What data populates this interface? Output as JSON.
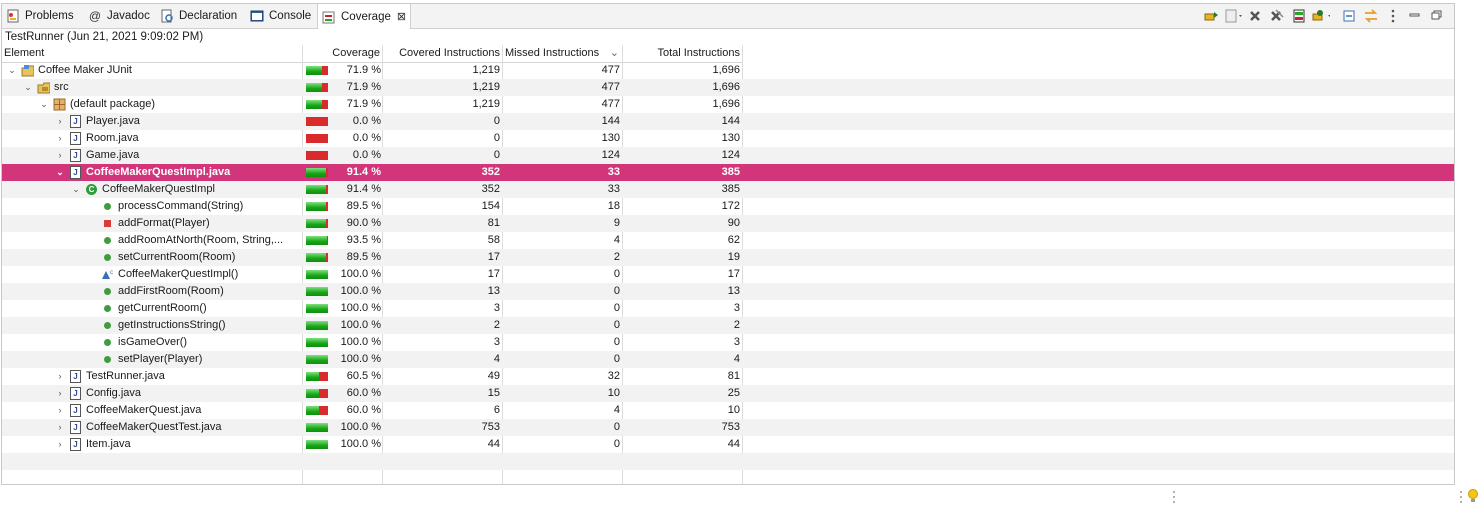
{
  "tabs": [
    {
      "label": "Problems",
      "icon": "problems-icon",
      "active": false
    },
    {
      "label": "Javadoc",
      "icon": "at-icon",
      "active": false
    },
    {
      "label": "Declaration",
      "icon": "declaration-icon",
      "active": false
    },
    {
      "label": "Console",
      "icon": "console-icon",
      "active": false
    },
    {
      "label": "Coverage",
      "icon": "coverage-icon",
      "active": true
    }
  ],
  "session": {
    "label": "TestRunner (Jun 21, 2021 9:09:02 PM)"
  },
  "columns": {
    "element": "Element",
    "coverage": "Coverage",
    "covered": "Covered Instructions",
    "missed": "Missed Instructions",
    "total": "Total Instructions",
    "sort_indicator": "⌄"
  },
  "toolbar_icons": [
    "relaunch-icon",
    "dump-icon",
    "remove-session-icon",
    "remove-all-sessions-icon",
    "merge-sessions-icon",
    "select-session-icon",
    "collapse-all-icon",
    "link-with-selection-icon",
    "view-menu-icon",
    "minimize-icon",
    "maximize-icon"
  ],
  "colors": {
    "selection": "#d3357a",
    "covered": "#17a617",
    "missed": "#d92b2b"
  },
  "rows": [
    {
      "name": "Coffee Maker JUnit",
      "depth": 0,
      "icon": "project",
      "expand": "open",
      "coverage_ratio": 0.719,
      "coverage": "71.9 %",
      "covered": "1,219",
      "missed": "477",
      "total": "1,696"
    },
    {
      "name": "src",
      "depth": 1,
      "icon": "source-folder",
      "expand": "open",
      "coverage_ratio": 0.719,
      "coverage": "71.9 %",
      "covered": "1,219",
      "missed": "477",
      "total": "1,696"
    },
    {
      "name": "(default package)",
      "depth": 2,
      "icon": "package",
      "expand": "open",
      "coverage_ratio": 0.719,
      "coverage": "71.9 %",
      "covered": "1,219",
      "missed": "477",
      "total": "1,696"
    },
    {
      "name": "Player.java",
      "depth": 3,
      "icon": "java-file",
      "expand": "closed",
      "coverage_ratio": 0.0,
      "coverage": "0.0 %",
      "covered": "0",
      "missed": "144",
      "total": "144"
    },
    {
      "name": "Room.java",
      "depth": 3,
      "icon": "java-file",
      "expand": "closed",
      "coverage_ratio": 0.0,
      "coverage": "0.0 %",
      "covered": "0",
      "missed": "130",
      "total": "130"
    },
    {
      "name": "Game.java",
      "depth": 3,
      "icon": "java-file",
      "expand": "closed",
      "coverage_ratio": 0.0,
      "coverage": "0.0 %",
      "covered": "0",
      "missed": "124",
      "total": "124"
    },
    {
      "name": "CoffeeMakerQuestImpl.java",
      "depth": 3,
      "icon": "java-file",
      "expand": "open",
      "coverage_ratio": 0.914,
      "coverage": "91.4 %",
      "covered": "352",
      "missed": "33",
      "total": "385",
      "selected": true
    },
    {
      "name": "CoffeeMakerQuestImpl",
      "depth": 4,
      "icon": "class",
      "expand": "open",
      "coverage_ratio": 0.914,
      "coverage": "91.4 %",
      "covered": "352",
      "missed": "33",
      "total": "385"
    },
    {
      "name": "processCommand(String)",
      "depth": 5,
      "icon": "public-method",
      "expand": "none",
      "coverage_ratio": 0.895,
      "coverage": "89.5 %",
      "covered": "154",
      "missed": "18",
      "total": "172"
    },
    {
      "name": "addFormat(Player)",
      "depth": 5,
      "icon": "private-method",
      "expand": "none",
      "coverage_ratio": 0.9,
      "coverage": "90.0 %",
      "covered": "81",
      "missed": "9",
      "total": "90"
    },
    {
      "name": "addRoomAtNorth(Room, String,...",
      "depth": 5,
      "icon": "public-method",
      "expand": "none",
      "coverage_ratio": 0.935,
      "coverage": "93.5 %",
      "covered": "58",
      "missed": "4",
      "total": "62"
    },
    {
      "name": "setCurrentRoom(Room)",
      "depth": 5,
      "icon": "public-method",
      "expand": "none",
      "coverage_ratio": 0.895,
      "coverage": "89.5 %",
      "covered": "17",
      "missed": "2",
      "total": "19"
    },
    {
      "name": "CoffeeMakerQuestImpl()",
      "depth": 5,
      "icon": "constructor",
      "expand": "none",
      "coverage_ratio": 1.0,
      "coverage": "100.0 %",
      "covered": "17",
      "missed": "0",
      "total": "17"
    },
    {
      "name": "addFirstRoom(Room)",
      "depth": 5,
      "icon": "public-method",
      "expand": "none",
      "coverage_ratio": 1.0,
      "coverage": "100.0 %",
      "covered": "13",
      "missed": "0",
      "total": "13"
    },
    {
      "name": "getCurrentRoom()",
      "depth": 5,
      "icon": "public-method",
      "expand": "none",
      "coverage_ratio": 1.0,
      "coverage": "100.0 %",
      "covered": "3",
      "missed": "0",
      "total": "3"
    },
    {
      "name": "getInstructionsString()",
      "depth": 5,
      "icon": "public-method",
      "expand": "none",
      "coverage_ratio": 1.0,
      "coverage": "100.0 %",
      "covered": "2",
      "missed": "0",
      "total": "2"
    },
    {
      "name": "isGameOver()",
      "depth": 5,
      "icon": "public-method",
      "expand": "none",
      "coverage_ratio": 1.0,
      "coverage": "100.0 %",
      "covered": "3",
      "missed": "0",
      "total": "3"
    },
    {
      "name": "setPlayer(Player)",
      "depth": 5,
      "icon": "public-method",
      "expand": "none",
      "coverage_ratio": 1.0,
      "coverage": "100.0 %",
      "covered": "4",
      "missed": "0",
      "total": "4"
    },
    {
      "name": "TestRunner.java",
      "depth": 3,
      "icon": "java-file",
      "expand": "closed",
      "coverage_ratio": 0.605,
      "coverage": "60.5 %",
      "covered": "49",
      "missed": "32",
      "total": "81"
    },
    {
      "name": "Config.java",
      "depth": 3,
      "icon": "java-file",
      "expand": "closed",
      "coverage_ratio": 0.6,
      "coverage": "60.0 %",
      "covered": "15",
      "missed": "10",
      "total": "25"
    },
    {
      "name": "CoffeeMakerQuest.java",
      "depth": 3,
      "icon": "java-file",
      "expand": "closed",
      "coverage_ratio": 0.6,
      "coverage": "60.0 %",
      "covered": "6",
      "missed": "4",
      "total": "10"
    },
    {
      "name": "CoffeeMakerQuestTest.java",
      "depth": 3,
      "icon": "java-file",
      "expand": "closed",
      "coverage_ratio": 1.0,
      "coverage": "100.0 %",
      "covered": "753",
      "missed": "0",
      "total": "753"
    },
    {
      "name": "Item.java",
      "depth": 3,
      "icon": "java-file",
      "expand": "closed",
      "coverage_ratio": 1.0,
      "coverage": "100.0 %",
      "covered": "44",
      "missed": "0",
      "total": "44"
    }
  ],
  "statusbar": {
    "menu_icon": "status-menu-icon",
    "tip_icon": "lightbulb-icon"
  }
}
